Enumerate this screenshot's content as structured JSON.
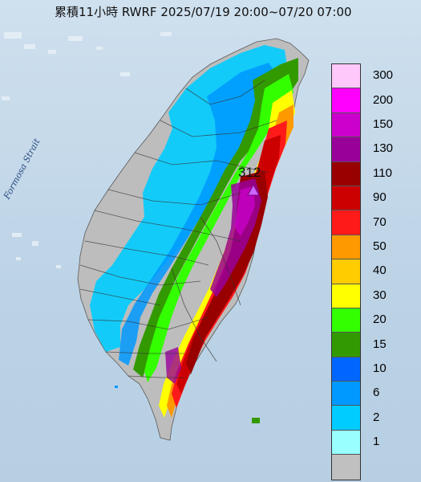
{
  "title": "累積11小時 RWRF 2025/07/19 20:00~07/20 07:00",
  "strait_label": "Formosa Strait",
  "max_value_label": "312",
  "max_marker_icon": "triangle-icon",
  "legend": [
    {
      "label": "300",
      "color": "#ffc8fa"
    },
    {
      "label": "200",
      "color": "#ff00ff"
    },
    {
      "label": "150",
      "color": "#cc00cc"
    },
    {
      "label": "130",
      "color": "#99009a"
    },
    {
      "label": "110",
      "color": "#990000"
    },
    {
      "label": "90",
      "color": "#cc0000"
    },
    {
      "label": "70",
      "color": "#ff1a1a"
    },
    {
      "label": "50",
      "color": "#ff9900"
    },
    {
      "label": "40",
      "color": "#ffcc00"
    },
    {
      "label": "30",
      "color": "#ffff00"
    },
    {
      "label": "20",
      "color": "#33ff00"
    },
    {
      "label": "15",
      "color": "#339900"
    },
    {
      "label": "10",
      "color": "#0066ff"
    },
    {
      "label": "6",
      "color": "#0099ff"
    },
    {
      "label": "2",
      "color": "#00ccff"
    },
    {
      "label": "1",
      "color": "#99ffff"
    },
    {
      "label": "",
      "color": "#c0c0c0"
    }
  ]
}
